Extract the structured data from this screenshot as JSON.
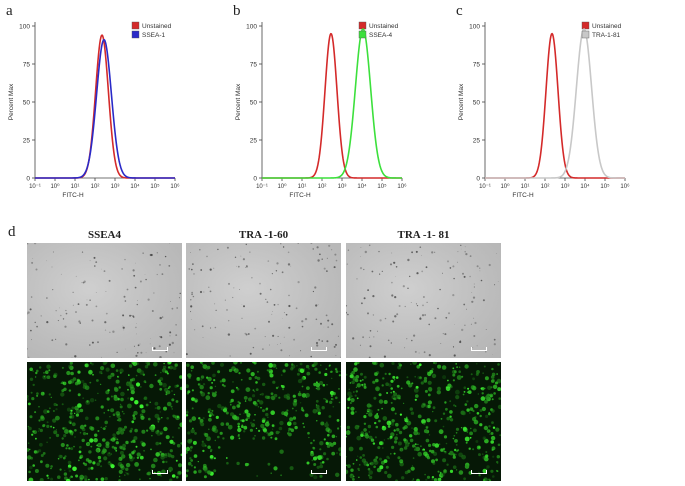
{
  "panel_labels": [
    "a",
    "b",
    "c",
    "d"
  ],
  "chart_data": [
    {
      "type": "line",
      "xlabel": "FITC-H",
      "ylabel": "Percent Max",
      "xscale": "log",
      "xticks": [
        "10⁻¹",
        "10⁰",
        "10¹",
        "10²",
        "10³",
        "10⁴",
        "10⁵",
        "10⁶"
      ],
      "ylim": [
        0,
        100
      ],
      "yticks": [
        0,
        25,
        50,
        75,
        100
      ],
      "legend_position": "top-right",
      "series": [
        {
          "name": "Unstained",
          "color": "#d42a2a",
          "peak_log10": 2.35,
          "peak_value": 94,
          "width_log10": 0.32
        },
        {
          "name": "SSEA-1",
          "color": "#2a2ac8",
          "peak_log10": 2.45,
          "peak_value": 91,
          "width_log10": 0.37
        }
      ]
    },
    {
      "type": "line",
      "xlabel": "FITC-H",
      "ylabel": "Percent Max",
      "xscale": "log",
      "xticks": [
        "10⁻¹",
        "10⁰",
        "10¹",
        "10²",
        "10³",
        "10⁴",
        "10⁵",
        "10⁶"
      ],
      "ylim": [
        0,
        100
      ],
      "yticks": [
        0,
        25,
        50,
        75,
        100
      ],
      "legend_position": "top-right",
      "series": [
        {
          "name": "Unstained",
          "color": "#d42a2a",
          "peak_log10": 2.45,
          "peak_value": 95,
          "width_log10": 0.3
        },
        {
          "name": "SSEA-4",
          "color": "#3ce03c",
          "peak_log10": 4.05,
          "peak_value": 98,
          "width_log10": 0.38
        }
      ]
    },
    {
      "type": "line",
      "xlabel": "FITC-H",
      "ylabel": "Percent Max",
      "xscale": "log",
      "xticks": [
        "10⁻¹",
        "10⁰",
        "10¹",
        "10²",
        "10³",
        "10⁴",
        "10⁵",
        "10⁶"
      ],
      "ylim": [
        0,
        100
      ],
      "yticks": [
        0,
        25,
        50,
        75,
        100
      ],
      "legend_position": "top-right",
      "series": [
        {
          "name": "Unstained",
          "color": "#d42a2a",
          "peak_log10": 2.35,
          "peak_value": 95,
          "width_log10": 0.3
        },
        {
          "name": "TRA-1-81",
          "color": "#c8c8c8",
          "peak_log10": 3.95,
          "peak_value": 98,
          "width_log10": 0.38
        }
      ]
    }
  ],
  "micrographs": {
    "columns": [
      "SSEA4",
      "TRA -1-60",
      "TRA -1- 81"
    ]
  }
}
